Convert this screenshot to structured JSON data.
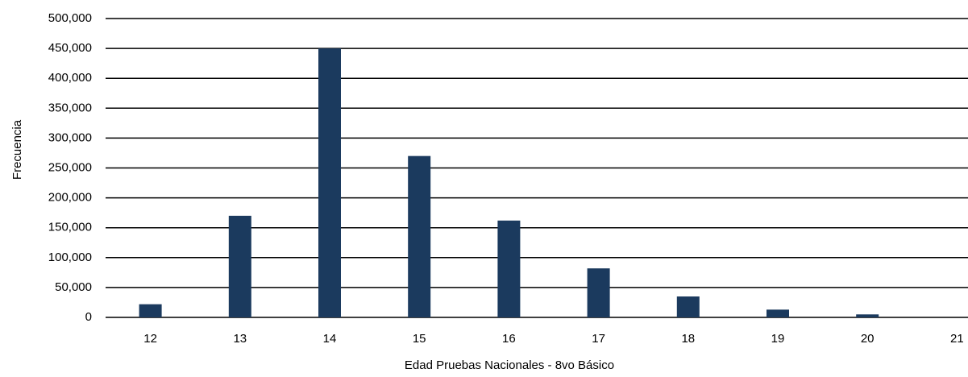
{
  "chart_data": {
    "type": "bar",
    "x_label": "Edad Pruebas Nacionales - 8vo Básico",
    "y_label": "Frecuencia",
    "categories": [
      "12",
      "13",
      "14",
      "15",
      "16",
      "17",
      "18",
      "19",
      "20",
      "21"
    ],
    "values": [
      22000,
      170000,
      450000,
      270000,
      162000,
      82000,
      35000,
      13000,
      5000,
      null
    ],
    "color": "#1b3a5e",
    "ylim": [
      0,
      500000
    ],
    "yticks": [
      0,
      {
        "value": 50000,
        "label": "50,000"
      },
      {
        "value": 100000,
        "label": "100,000"
      },
      {
        "value": 150000,
        "label": "150,000"
      },
      {
        "value": 200000,
        "label": "200,000"
      },
      {
        "value": 250000,
        "label": "250,000"
      },
      {
        "value": 300000,
        "label": "300,000"
      },
      {
        "value": 350000,
        "label": "350,000"
      },
      {
        "value": 400000,
        "label": "400,000"
      },
      {
        "value": 450000,
        "label": "450,000"
      },
      {
        "value": 500000,
        "label": "500,000"
      }
    ],
    "grid": true
  }
}
